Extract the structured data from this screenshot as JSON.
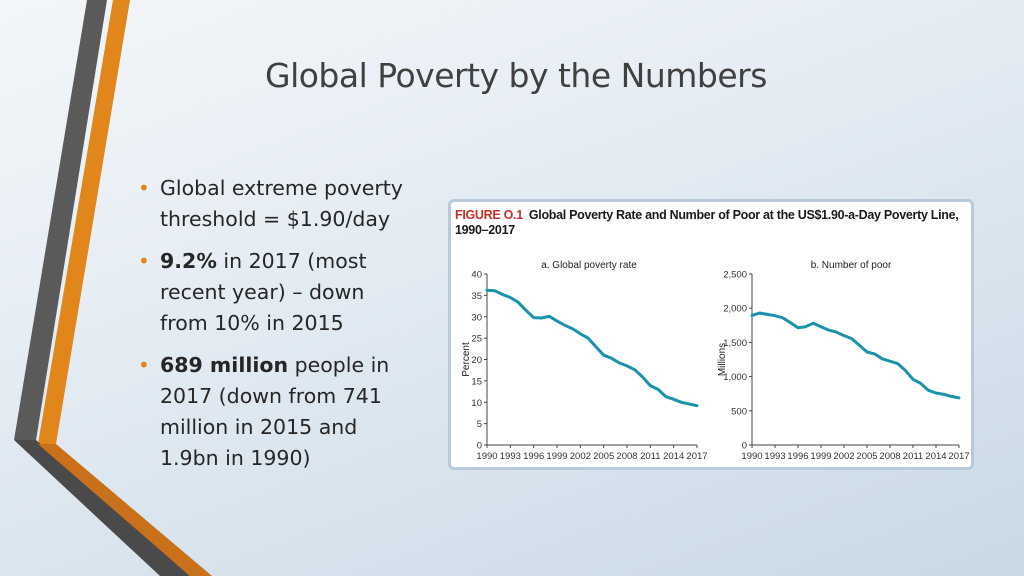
{
  "slide": {
    "title": "Global Poverty by the Numbers",
    "bullets": [
      {
        "bold": "",
        "text": "Global extreme poverty threshold = $1.90/day"
      },
      {
        "bold": "9.2%",
        "text": " in 2017 (most recent year) – down from 10% in 2015"
      },
      {
        "bold": "689 million",
        "text": " people in 2017 (down from 741 million in 2015 and 1.9bn in 1990)"
      }
    ]
  },
  "figure": {
    "label": "FIGURE O.1",
    "title": "Global Poverty Rate and Number of Poor at the US$1.90-a-Day Poverty Line, 1990–2017"
  },
  "colors": {
    "accent": "#e0861a",
    "line": "#1a93a8",
    "bullet": "#e0861a"
  },
  "chart_data": [
    {
      "type": "line",
      "title": "a. Global poverty rate",
      "ylabel": "Percent",
      "xlabel": "",
      "ylim": [
        0,
        40
      ],
      "yticks": [
        0,
        5,
        10,
        15,
        20,
        25,
        30,
        35,
        40
      ],
      "xticks": [
        1990,
        1993,
        1996,
        1999,
        2002,
        2005,
        2008,
        2011,
        2014,
        2017
      ],
      "x": [
        1990,
        1991,
        1992,
        1993,
        1994,
        1995,
        1996,
        1997,
        1998,
        1999,
        2000,
        2001,
        2002,
        2003,
        2004,
        2005,
        2006,
        2007,
        2008,
        2009,
        2010,
        2011,
        2012,
        2013,
        2014,
        2015,
        2016,
        2017
      ],
      "y": [
        36.2,
        36.1,
        35.2,
        34.5,
        33.4,
        31.5,
        29.8,
        29.7,
        30.1,
        29.0,
        28.0,
        27.2,
        26.0,
        25.0,
        23.0,
        21.0,
        20.3,
        19.2,
        18.5,
        17.6,
        15.9,
        13.9,
        13.0,
        11.3,
        10.7,
        10.0,
        9.6,
        9.2
      ]
    },
    {
      "type": "line",
      "title": "b. Number of poor",
      "ylabel": "Millions",
      "xlabel": "",
      "ylim": [
        0,
        2500
      ],
      "yticks": [
        0,
        500,
        1000,
        1500,
        2000,
        2500
      ],
      "xticks": [
        1990,
        1993,
        1996,
        1999,
        2002,
        2005,
        2008,
        2011,
        2014,
        2017
      ],
      "x": [
        1990,
        1991,
        1992,
        1993,
        1994,
        1995,
        1996,
        1997,
        1998,
        1999,
        2000,
        2001,
        2002,
        2003,
        2004,
        2005,
        2006,
        2007,
        2008,
        2009,
        2010,
        2011,
        2012,
        2013,
        2014,
        2015,
        2016,
        2017
      ],
      "y": [
        1895,
        1930,
        1910,
        1890,
        1860,
        1790,
        1715,
        1730,
        1780,
        1730,
        1680,
        1650,
        1600,
        1555,
        1460,
        1360,
        1330,
        1260,
        1225,
        1190,
        1090,
        960,
        900,
        800,
        760,
        741,
        710,
        689
      ]
    }
  ]
}
